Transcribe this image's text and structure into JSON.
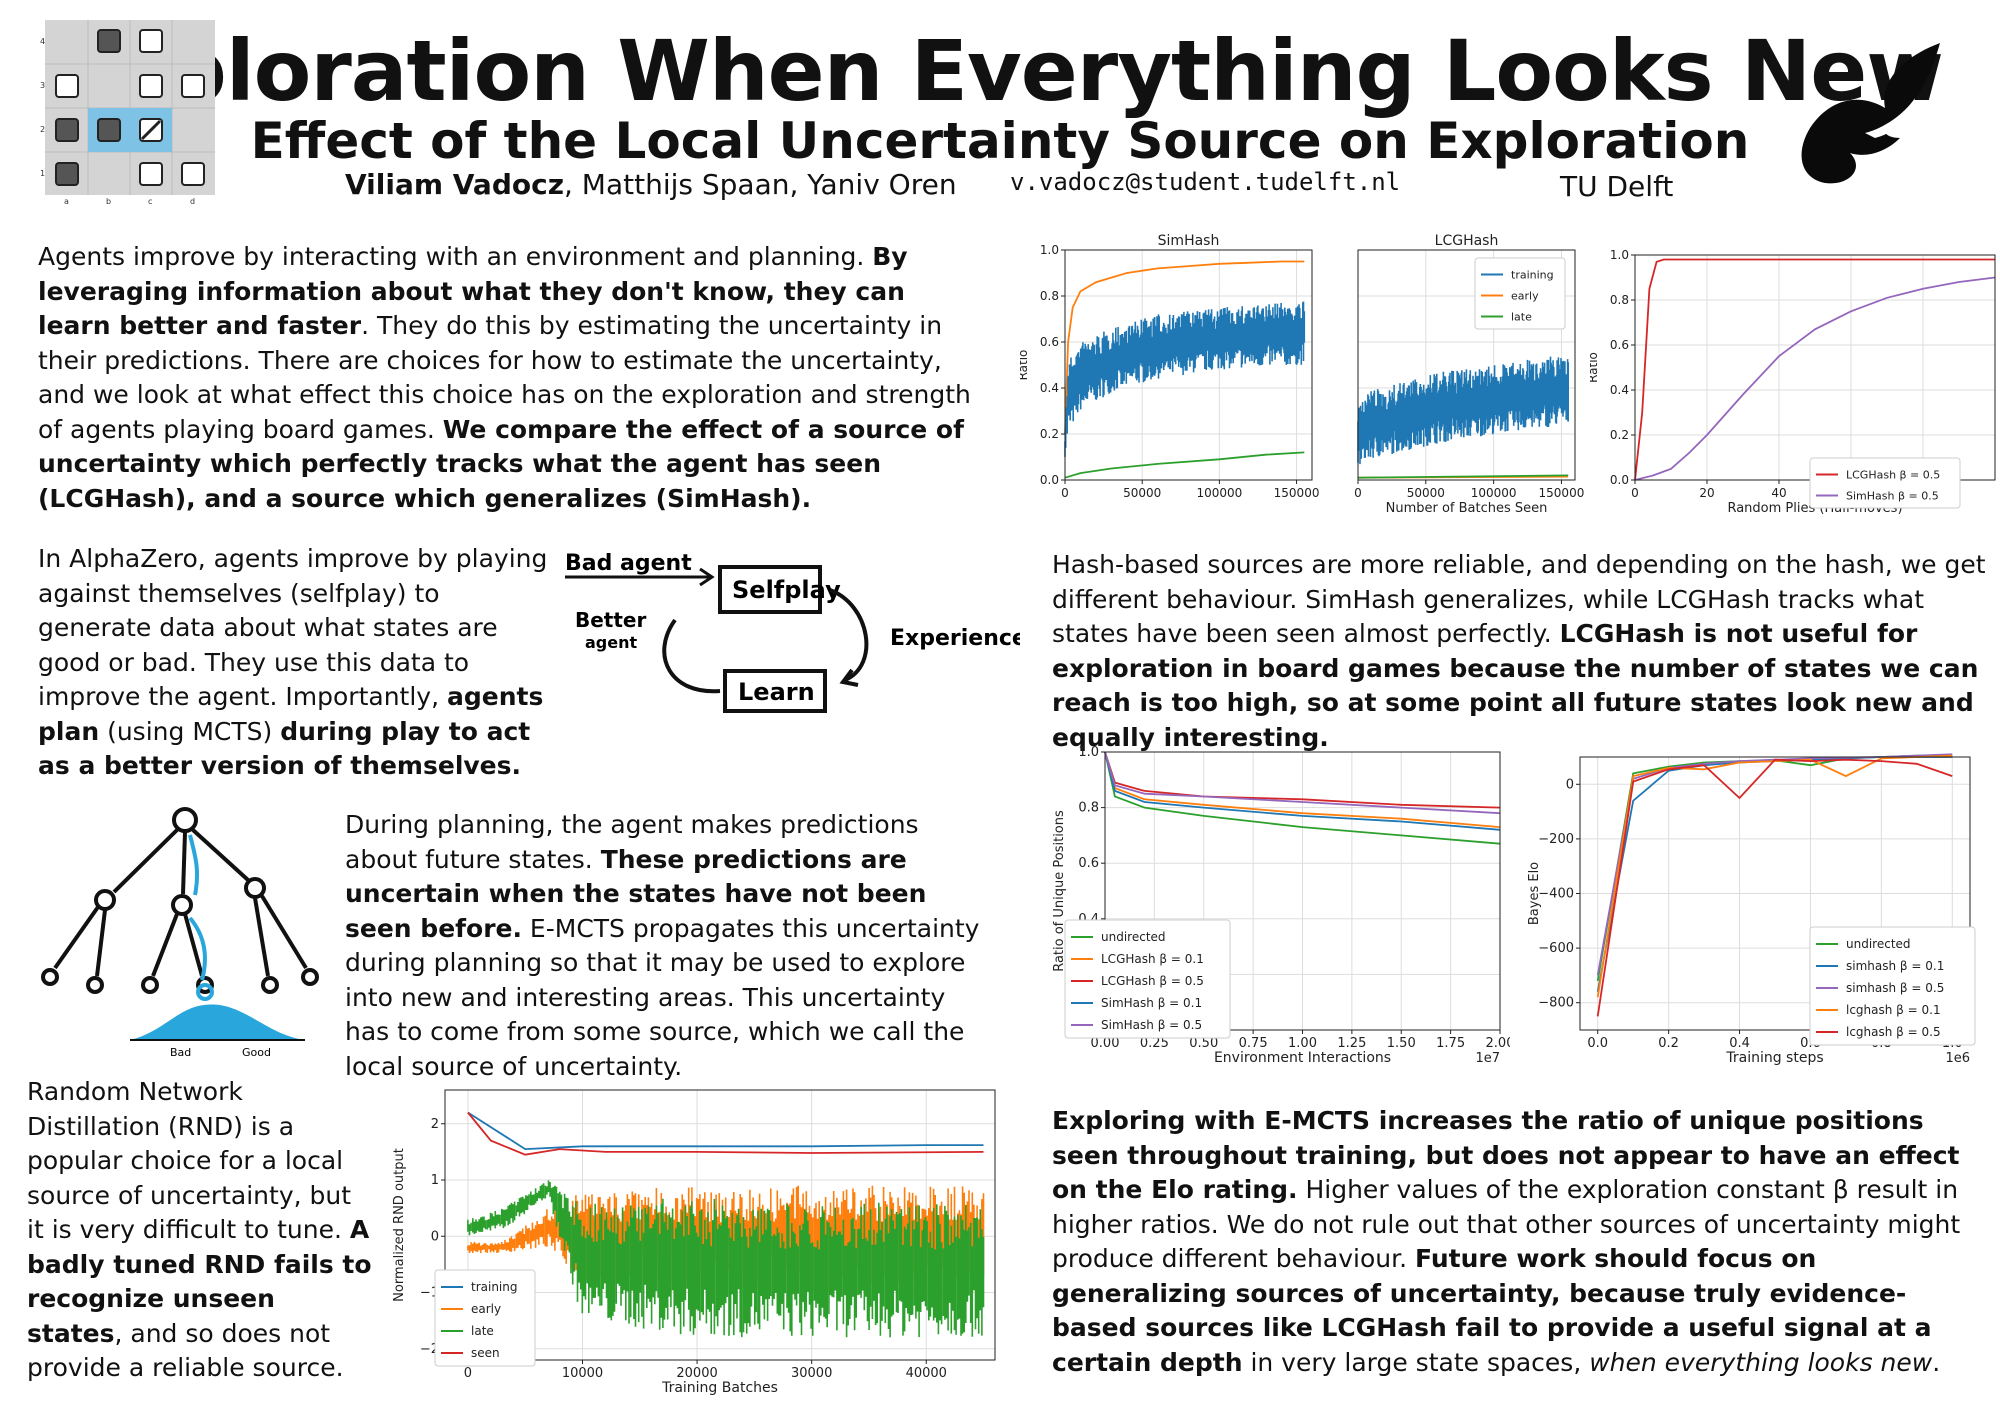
{
  "header": {
    "title": "Exploration When Everything Looks New",
    "subtitle": "Effect of the Local Uncertainty Source on Exploration",
    "author_main": "Viliam Vadocz",
    "authors_rest": ", Matthijs Spaan, Yaniv Oren",
    "email": "v.vadocz@student.tudelft.nl",
    "affiliation": "TU Delft"
  },
  "board": {
    "row_labels": [
      "4",
      "3",
      "2",
      "1"
    ],
    "col_labels": [
      "a",
      "b",
      "c",
      "d"
    ]
  },
  "text": {
    "p1_a": "Agents improve by interacting with an environment and planning. ",
    "p1_b": "By leveraging information about what they don't know, they can learn better and faster",
    "p1_c": ". They do this by estimating the uncertainty in their predictions. There are choices for how to estimate the uncertainty, and we look at what effect this choice has on the exploration and strength of agents playing board games. ",
    "p1_d": "We compare the effect of a source of uncertainty which perfectly tracks what the agent has seen (LCGHash), and a source which generalizes (SimHash).",
    "p2_a": "In AlphaZero, agents improve by playing against themselves (selfplay) to generate data about what states are good or bad. They use this data to improve the agent. Importantly, ",
    "p2_b": "agents plan",
    "p2_c": " (using MCTS) ",
    "p2_d": "during play to act as a better version of themselves.",
    "p3_a": "During planning, the agent makes predictions about future states. ",
    "p3_b": "These predictions are uncertain when the states have not been seen before.",
    "p3_c": " E-MCTS propagates this uncertainty during planning so that it may be used to explore into new and interesting areas. This uncertainty has to come from some source, which we call the local source of uncertainty.",
    "p4_a": "Random Network Distillation (RND) is a popular choice for a local source of uncertainty, but it is very difficult to tune. ",
    "p4_b": "A badly tuned RND fails to recognize unseen states",
    "p4_c": ", and so does not provide a reliable source.",
    "p5_a": "Hash-based sources are more reliable, and depending on the hash, we get different behaviour. SimHash generalizes, while LCGHash tracks what states have been seen almost perfectly. ",
    "p5_b": "LCGHash is not useful for exploration in board games because the number of states we can reach is too high, so at some point all future states look new and equally interesting.",
    "p6_a": "Exploring with E-MCTS increases the ratio of unique positions seen throughout training, but does not appear to have an effect on the Elo rating.",
    "p6_b": " Higher values of the exploration constant β result in higher ratios. We do not rule out that other sources of uncertainty might produce different behaviour.  ",
    "p6_c": "Future work should focus on generalizing sources of uncertainty, because truly evidence-based sources like LCGHash fail to provide a useful signal at a certain depth",
    "p6_d": " in very large state spaces, ",
    "p6_e": "when everything looks new",
    "p6_f": "."
  },
  "cycle_diagram": {
    "bad_agent": "Bad agent",
    "selfplay": "Selfplay",
    "better": "Better",
    "agent": "agent",
    "experience": "Experience",
    "learn": "Learn"
  },
  "tree_diagram": {
    "bad": "Bad",
    "good": "Good"
  },
  "chart_data": [
    {
      "type": "line",
      "title": "SimHash",
      "ylabel": "Ratio",
      "xlim": [
        0,
        160000
      ],
      "ylim": [
        0,
        1.0
      ],
      "xticks": [
        "0",
        "50000",
        "100000",
        "150000"
      ],
      "yticks": [
        "0.0",
        "0.2",
        "0.4",
        "0.6",
        "0.8",
        "1.0"
      ],
      "series": [
        {
          "name": "early",
          "color": "#ff7f0e",
          "x": [
            0,
            2000,
            5000,
            10000,
            20000,
            40000,
            60000,
            80000,
            100000,
            120000,
            140000,
            155000
          ],
          "y": [
            0.2,
            0.6,
            0.75,
            0.82,
            0.86,
            0.9,
            0.92,
            0.93,
            0.94,
            0.945,
            0.95,
            0.95
          ]
        },
        {
          "name": "training",
          "color": "#1f77b4",
          "band": true,
          "x": [
            0,
            2000,
            10000,
            30000,
            60000,
            100000,
            155000
          ],
          "ylow": [
            0.1,
            0.2,
            0.3,
            0.38,
            0.44,
            0.48,
            0.5
          ],
          "yhigh": [
            0.2,
            0.52,
            0.6,
            0.66,
            0.72,
            0.75,
            0.78
          ]
        },
        {
          "name": "late",
          "color": "#2ca02c",
          "x": [
            0,
            10000,
            30000,
            60000,
            100000,
            130000,
            155000
          ],
          "y": [
            0.01,
            0.03,
            0.05,
            0.07,
            0.09,
            0.11,
            0.12
          ]
        }
      ]
    },
    {
      "type": "line",
      "title": "LCGHash",
      "xlim": [
        0,
        160000
      ],
      "ylim": [
        0,
        1.0
      ],
      "xticks": [
        "0",
        "50000",
        "100000",
        "150000"
      ],
      "xlabel": "Number of Batches Seen",
      "legend": [
        "training",
        "early",
        "late"
      ],
      "series": [
        {
          "name": "training",
          "color": "#1f77b4",
          "band": true,
          "x": [
            0,
            5000,
            30000,
            60000,
            100000,
            155000
          ],
          "ylow": [
            0.05,
            0.08,
            0.12,
            0.16,
            0.2,
            0.24
          ],
          "yhigh": [
            0.3,
            0.38,
            0.42,
            0.47,
            0.5,
            0.55
          ]
        },
        {
          "name": "early",
          "color": "#ff7f0e",
          "x": [
            0,
            155000
          ],
          "y": [
            0.01,
            0.015
          ]
        },
        {
          "name": "late",
          "color": "#2ca02c",
          "x": [
            0,
            155000
          ],
          "y": [
            0.01,
            0.02
          ]
        }
      ]
    },
    {
      "type": "line",
      "ylabel": "Ratio",
      "xlabel": "Random Plies (Half-moves)",
      "xlim": [
        0,
        100
      ],
      "ylim": [
        0,
        1.0
      ],
      "xticks": [
        "0",
        "20",
        "40",
        "60",
        "80"
      ],
      "yticks": [
        "0.0",
        "0.2",
        "0.4",
        "0.6",
        "0.8",
        "1.0"
      ],
      "series": [
        {
          "name": "LCGHash β = 0.5",
          "color": "#d62728",
          "x": [
            0,
            2,
            4,
            6,
            8,
            100
          ],
          "y": [
            0,
            0.3,
            0.85,
            0.97,
            0.98,
            0.98
          ]
        },
        {
          "name": "SimHash β = 0.5",
          "color": "#9467bd",
          "x": [
            0,
            5,
            10,
            15,
            20,
            30,
            40,
            50,
            60,
            70,
            80,
            90,
            100
          ],
          "y": [
            0,
            0.02,
            0.05,
            0.12,
            0.2,
            0.38,
            0.55,
            0.67,
            0.75,
            0.81,
            0.85,
            0.88,
            0.9
          ]
        }
      ]
    },
    {
      "type": "line",
      "ylabel": "Ratio of Unique Positions",
      "xlabel": "Environment Interactions",
      "xmultiplier": "1e7",
      "xlim": [
        0,
        2.0
      ],
      "ylim": [
        0,
        1.0
      ],
      "xticks": [
        "0.00",
        "0.25",
        "0.50",
        "0.75",
        "1.00",
        "1.25",
        "1.50",
        "1.75",
        "2.00"
      ],
      "yticks": [
        "0.0",
        "0.2",
        "0.4",
        "0.6",
        "0.8",
        "1.0"
      ],
      "series": [
        {
          "name": "undirected",
          "color": "#2ca02c",
          "x": [
            0,
            0.05,
            0.2,
            0.5,
            1.0,
            1.5,
            2.0
          ],
          "y": [
            1.0,
            0.84,
            0.8,
            0.77,
            0.73,
            0.7,
            0.67
          ]
        },
        {
          "name": "LCGHash β = 0.1",
          "color": "#ff7f0e",
          "x": [
            0,
            0.05,
            0.2,
            0.5,
            1.0,
            1.5,
            2.0
          ],
          "y": [
            1.0,
            0.87,
            0.83,
            0.81,
            0.78,
            0.76,
            0.73
          ]
        },
        {
          "name": "LCGHash β = 0.5",
          "color": "#d62728",
          "x": [
            0,
            0.05,
            0.2,
            0.5,
            1.0,
            1.5,
            2.0
          ],
          "y": [
            1.0,
            0.89,
            0.86,
            0.84,
            0.83,
            0.81,
            0.8
          ]
        },
        {
          "name": "SimHash β = 0.1",
          "color": "#1f77b4",
          "x": [
            0,
            0.05,
            0.2,
            0.5,
            1.0,
            1.5,
            2.0
          ],
          "y": [
            1.0,
            0.86,
            0.82,
            0.8,
            0.77,
            0.75,
            0.72
          ]
        },
        {
          "name": "SimHash β = 0.5",
          "color": "#9467bd",
          "x": [
            0,
            0.05,
            0.2,
            0.5,
            1.0,
            1.5,
            2.0
          ],
          "y": [
            1.0,
            0.88,
            0.85,
            0.84,
            0.82,
            0.8,
            0.78
          ]
        }
      ]
    },
    {
      "type": "line",
      "ylabel": "Bayes Elo",
      "xlabel": "Training steps",
      "xmultiplier": "1e6",
      "xlim": [
        -0.05,
        1.05
      ],
      "ylim": [
        -900,
        100
      ],
      "xticks": [
        "0.0",
        "0.2",
        "0.4",
        "0.6",
        "0.8",
        "1.0"
      ],
      "yticks": [
        "0",
        "−200",
        "−400",
        "−600",
        "−800"
      ],
      "series": [
        {
          "name": "undirected",
          "color": "#2ca02c",
          "x": [
            0,
            0.1,
            0.2,
            0.3,
            0.4,
            0.5,
            0.6,
            0.7,
            0.8,
            0.9,
            1.0
          ],
          "y": [
            -720,
            40,
            65,
            80,
            85,
            88,
            70,
            95,
            100,
            105,
            105
          ]
        },
        {
          "name": "simhash β = 0.1",
          "color": "#1f77b4",
          "x": [
            0,
            0.1,
            0.2,
            0.3,
            0.4,
            0.5,
            0.6,
            0.7,
            0.8,
            0.9,
            1.0
          ],
          "y": [
            -760,
            -60,
            50,
            70,
            80,
            85,
            90,
            95,
            100,
            100,
            100
          ]
        },
        {
          "name": "simhash β = 0.5",
          "color": "#9467bd",
          "x": [
            0,
            0.1,
            0.2,
            0.3,
            0.4,
            0.5,
            0.6,
            0.7,
            0.8,
            0.9,
            1.0
          ],
          "y": [
            -700,
            20,
            60,
            75,
            85,
            90,
            95,
            98,
            100,
            105,
            110
          ]
        },
        {
          "name": "lcghash β = 0.1",
          "color": "#ff7f0e",
          "x": [
            0,
            0.1,
            0.2,
            0.3,
            0.4,
            0.5,
            0.6,
            0.7,
            0.8,
            0.9,
            1.0
          ],
          "y": [
            -780,
            30,
            60,
            55,
            80,
            85,
            90,
            30,
            95,
            100,
            105
          ]
        },
        {
          "name": "lcghash β = 0.5",
          "color": "#d62728",
          "x": [
            0,
            0.1,
            0.2,
            0.3,
            0.4,
            0.5,
            0.6,
            0.7,
            0.8,
            0.9,
            1.0
          ],
          "y": [
            -850,
            10,
            55,
            70,
            -50,
            90,
            85,
            90,
            85,
            75,
            30
          ]
        }
      ]
    },
    {
      "type": "line",
      "ylabel": "Normalized RND output",
      "xlabel": "Training Batches",
      "xlim": [
        -2000,
        46000
      ],
      "ylim": [
        -2.2,
        2.6
      ],
      "xticks": [
        "0",
        "10000",
        "20000",
        "30000",
        "40000"
      ],
      "yticks": [
        "2",
        "1",
        "0",
        "−1",
        "−2"
      ],
      "series": [
        {
          "name": "training",
          "color": "#1f77b4",
          "x": [
            0,
            5000,
            10000,
            20000,
            30000,
            40000,
            45000
          ],
          "y": [
            2.2,
            1.55,
            1.6,
            1.6,
            1.6,
            1.62,
            1.62
          ]
        },
        {
          "name": "early",
          "color": "#ff7f0e",
          "band": true,
          "x": [
            0,
            3000,
            7000,
            10000,
            20000,
            30000,
            45000
          ],
          "ylow": [
            -0.3,
            -0.3,
            -0.2,
            -0.8,
            -1.0,
            -1.0,
            -1.0
          ],
          "yhigh": [
            -0.1,
            -0.1,
            0.5,
            0.8,
            0.9,
            0.9,
            0.9
          ]
        },
        {
          "name": "late",
          "color": "#2ca02c",
          "band": true,
          "x": [
            0,
            3000,
            7000,
            10000,
            20000,
            30000,
            45000
          ],
          "ylow": [
            0.0,
            0.1,
            0.7,
            -1.5,
            -1.8,
            -1.8,
            -1.8
          ],
          "yhigh": [
            0.3,
            0.5,
            1.0,
            0.6,
            0.7,
            0.6,
            0.6
          ]
        },
        {
          "name": "seen",
          "color": "#d62728",
          "x": [
            0,
            2000,
            5000,
            8000,
            12000,
            20000,
            30000,
            45000
          ],
          "y": [
            2.2,
            1.7,
            1.45,
            1.55,
            1.5,
            1.5,
            1.48,
            1.5
          ]
        }
      ]
    }
  ]
}
